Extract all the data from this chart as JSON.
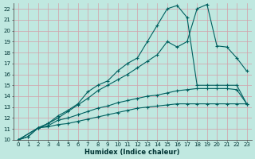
{
  "title": "",
  "xlabel": "Humidex (Indice chaleur)",
  "xlim": [
    -0.5,
    23.5
  ],
  "ylim": [
    10,
    22.5
  ],
  "xticks": [
    0,
    1,
    2,
    3,
    4,
    5,
    6,
    7,
    8,
    9,
    10,
    11,
    12,
    13,
    14,
    15,
    16,
    17,
    18,
    19,
    20,
    21,
    22,
    23
  ],
  "yticks": [
    10,
    11,
    12,
    13,
    14,
    15,
    16,
    17,
    18,
    19,
    20,
    21,
    22
  ],
  "background_color": "#c0e8e0",
  "grid_color": "#d4a0a8",
  "line_color": "#006060",
  "lines": [
    {
      "x": [
        0,
        1,
        2,
        3,
        4,
        5,
        6,
        7,
        8,
        9,
        10,
        11,
        12,
        13,
        14,
        15,
        16,
        17,
        18,
        19,
        20,
        21,
        22,
        23
      ],
      "y": [
        10,
        10.3,
        11.1,
        11.2,
        11.4,
        11.5,
        11.7,
        11.9,
        12.1,
        12.3,
        12.5,
        12.7,
        12.9,
        13.0,
        13.1,
        13.2,
        13.3,
        13.3,
        13.3,
        13.3,
        13.3,
        13.3,
        13.3,
        13.3
      ]
    },
    {
      "x": [
        0,
        1,
        2,
        3,
        4,
        5,
        6,
        7,
        8,
        9,
        10,
        11,
        12,
        13,
        14,
        15,
        16,
        17,
        18,
        19,
        20,
        21,
        22,
        23
      ],
      "y": [
        10,
        10.3,
        11.1,
        11.3,
        11.8,
        12.0,
        12.3,
        12.6,
        12.9,
        13.1,
        13.4,
        13.6,
        13.8,
        14.0,
        14.1,
        14.3,
        14.5,
        14.6,
        14.7,
        14.7,
        14.7,
        14.7,
        14.6,
        13.3
      ]
    },
    {
      "x": [
        0,
        2,
        3,
        4,
        5,
        6,
        7,
        8,
        9,
        10,
        11,
        12,
        13,
        14,
        15,
        16,
        17,
        18,
        19,
        20,
        21,
        22,
        23
      ],
      "y": [
        10,
        11.1,
        11.5,
        12.0,
        12.6,
        13.2,
        13.8,
        14.5,
        15.0,
        15.5,
        16.0,
        16.6,
        17.2,
        17.8,
        19.0,
        18.5,
        19.0,
        22.0,
        22.4,
        18.6,
        18.5,
        17.5,
        16.3
      ]
    },
    {
      "x": [
        0,
        2,
        3,
        4,
        5,
        6,
        7,
        8,
        9,
        10,
        11,
        12,
        13,
        14,
        15,
        16,
        17,
        18,
        19,
        20,
        21,
        22,
        23
      ],
      "y": [
        10,
        11.1,
        11.5,
        12.2,
        12.7,
        13.3,
        14.4,
        15.0,
        15.4,
        16.3,
        17.0,
        17.5,
        19.0,
        20.5,
        22.0,
        22.3,
        21.2,
        15.0,
        15.0,
        15.0,
        15.0,
        15.0,
        13.3
      ]
    }
  ]
}
